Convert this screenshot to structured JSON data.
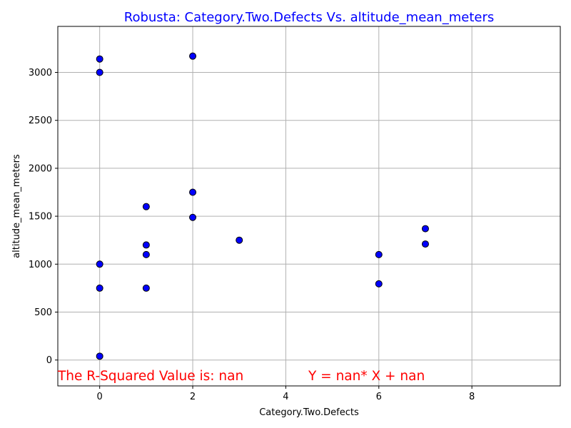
{
  "chart_data": {
    "type": "scatter",
    "title": "Robusta: Category.Two.Defects Vs. altitude_mean_meters",
    "xlabel": "Category.Two.Defects",
    "ylabel": "altitude_mean_meters",
    "xlim": [
      -0.9,
      9.9
    ],
    "ylim": [
      -270,
      3480
    ],
    "xticks": [
      0,
      2,
      4,
      6,
      8
    ],
    "yticks": [
      0,
      500,
      1000,
      1500,
      2000,
      2500,
      3000
    ],
    "grid": true,
    "points": [
      {
        "x": 0,
        "y": 3140
      },
      {
        "x": 0,
        "y": 3000
      },
      {
        "x": 0,
        "y": 1000
      },
      {
        "x": 0,
        "y": 750
      },
      {
        "x": 0,
        "y": 40
      },
      {
        "x": 1,
        "y": 1600
      },
      {
        "x": 1,
        "y": 1200
      },
      {
        "x": 1,
        "y": 1100
      },
      {
        "x": 1,
        "y": 750
      },
      {
        "x": 2,
        "y": 3170
      },
      {
        "x": 2,
        "y": 1750
      },
      {
        "x": 2,
        "y": 1488
      },
      {
        "x": 3,
        "y": 1250
      },
      {
        "x": 6,
        "y": 1100
      },
      {
        "x": 6,
        "y": 795
      },
      {
        "x": 7,
        "y": 1370
      },
      {
        "x": 7,
        "y": 1210
      }
    ],
    "annotations": {
      "r_squared": "The R-Squared Value is: nan",
      "equation": "Y = nan* X + nan"
    },
    "colors": {
      "marker_fill": "#0000ff",
      "marker_edge": "#000000",
      "title": "#0000ff",
      "annotation": "#ff0000",
      "grid": "#b0b0b0"
    }
  }
}
